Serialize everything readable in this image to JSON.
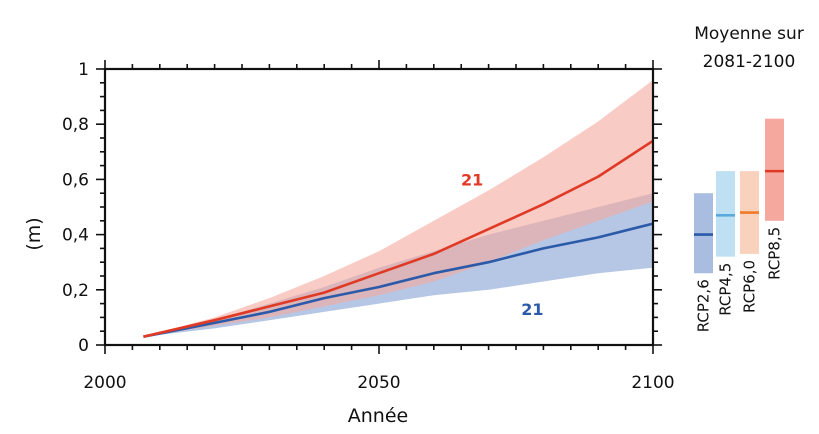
{
  "chart_data": {
    "type": "line",
    "xlabel": "Année",
    "ylabel": "(m)",
    "xlim": [
      2000,
      2100
    ],
    "ylim": [
      0,
      1
    ],
    "x_ticks": [
      {
        "value": 2000,
        "label": "2000"
      },
      {
        "value": 2050,
        "label": "2050"
      },
      {
        "value": 2100,
        "label": "2100"
      }
    ],
    "y_ticks": [
      {
        "value": 0,
        "label": "0"
      },
      {
        "value": 0.2,
        "label": "0,2"
      },
      {
        "value": 0.4,
        "label": "0,4"
      },
      {
        "value": 0.6,
        "label": "0,6"
      },
      {
        "value": 0.8,
        "label": "0,8"
      },
      {
        "value": 1,
        "label": "1"
      }
    ],
    "series": [
      {
        "name": "RCP2,6",
        "color": "#2b5aa8",
        "band_color": "#a9bde0",
        "x": [
          2007,
          2020,
          2030,
          2040,
          2050,
          2060,
          2070,
          2080,
          2090,
          2100
        ],
        "mean": [
          0.03,
          0.08,
          0.12,
          0.17,
          0.21,
          0.26,
          0.3,
          0.35,
          0.39,
          0.44
        ],
        "low": [
          0.03,
          0.06,
          0.09,
          0.12,
          0.15,
          0.18,
          0.2,
          0.23,
          0.26,
          0.28
        ],
        "high": [
          0.03,
          0.09,
          0.15,
          0.21,
          0.28,
          0.34,
          0.4,
          0.45,
          0.5,
          0.55
        ]
      },
      {
        "name": "RCP8,5",
        "color": "#e03a26",
        "band_color": "#f5a89e",
        "x": [
          2007,
          2020,
          2030,
          2040,
          2050,
          2060,
          2070,
          2080,
          2090,
          2100
        ],
        "mean": [
          0.03,
          0.09,
          0.14,
          0.19,
          0.26,
          0.33,
          0.42,
          0.51,
          0.61,
          0.74
        ],
        "low": [
          0.03,
          0.07,
          0.1,
          0.14,
          0.18,
          0.23,
          0.3,
          0.38,
          0.45,
          0.52
        ],
        "high": [
          0.03,
          0.1,
          0.17,
          0.25,
          0.34,
          0.45,
          0.56,
          0.68,
          0.81,
          0.96
        ]
      }
    ],
    "annotations": [
      {
        "text": "21",
        "x": 2067,
        "y": 0.6,
        "color": "#e03a26"
      },
      {
        "text": "21",
        "x": 2078,
        "y": 0.13,
        "color": "#2b5aa8"
      }
    ],
    "side_panel": {
      "title_line1": "Moyenne sur",
      "title_line2": "2081-2100",
      "bars": [
        {
          "name": "RCP2,6",
          "low": 0.26,
          "mean": 0.4,
          "high": 0.55,
          "band_color": "#a9bde0",
          "line_color": "#2b5aa8"
        },
        {
          "name": "RCP4,5",
          "low": 0.32,
          "mean": 0.47,
          "high": 0.63,
          "band_color": "#bfe0f2",
          "line_color": "#5aa9de"
        },
        {
          "name": "RCP6,0",
          "low": 0.33,
          "mean": 0.48,
          "high": 0.63,
          "band_color": "#f8d2bd",
          "line_color": "#f07a2a"
        },
        {
          "name": "RCP8,5",
          "low": 0.45,
          "mean": 0.63,
          "high": 0.82,
          "band_color": "#f5a89e",
          "line_color": "#e03a26"
        }
      ]
    }
  }
}
